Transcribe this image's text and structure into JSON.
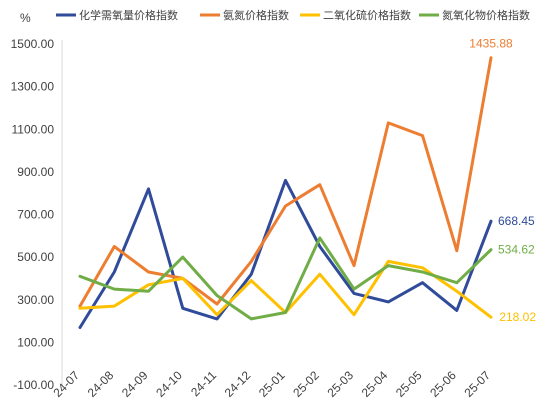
{
  "chart_data": {
    "type": "line",
    "title": "",
    "xlabel": "",
    "ylabel": "%",
    "ylim": [
      -100,
      1500
    ],
    "yticks": [
      -100,
      100,
      300,
      500,
      700,
      900,
      1100,
      1300,
      1500
    ],
    "ytick_labels": [
      "-100.00",
      "100.00",
      "300.00",
      "500.00",
      "700.00",
      "900.00",
      "1100.00",
      "1300.00",
      "1500.00"
    ],
    "grid": false,
    "legend_position": "top",
    "categories": [
      "24-07",
      "24-08",
      "24-09",
      "24-10",
      "24-11",
      "24-12",
      "25-01",
      "25-02",
      "25-03",
      "25-04",
      "25-05",
      "25-06",
      "25-07"
    ],
    "series": [
      {
        "name": "化学需氧量价格指数",
        "color": "#2F4B9A",
        "values": [
          170,
          430,
          820,
          260,
          210,
          420,
          860,
          550,
          330,
          290,
          380,
          250,
          668.45
        ],
        "end_label": "668.45"
      },
      {
        "name": "氨氮价格指数",
        "color": "#ED7D31",
        "values": [
          270,
          550,
          430,
          400,
          280,
          480,
          740,
          840,
          460,
          1130,
          1070,
          530,
          1435.88
        ],
        "end_label": "1435.88"
      },
      {
        "name": "二氧化硫价格指数",
        "color": "#FFC000",
        "values": [
          260,
          270,
          370,
          400,
          230,
          390,
          240,
          420,
          230,
          480,
          450,
          340,
          218.02
        ],
        "end_label": "218.02"
      },
      {
        "name": "氮氧化物价格指数",
        "color": "#70AD47",
        "values": [
          410,
          350,
          340,
          500,
          320,
          210,
          240,
          590,
          350,
          460,
          430,
          380,
          534.62
        ],
        "end_label": "534.62"
      }
    ]
  }
}
